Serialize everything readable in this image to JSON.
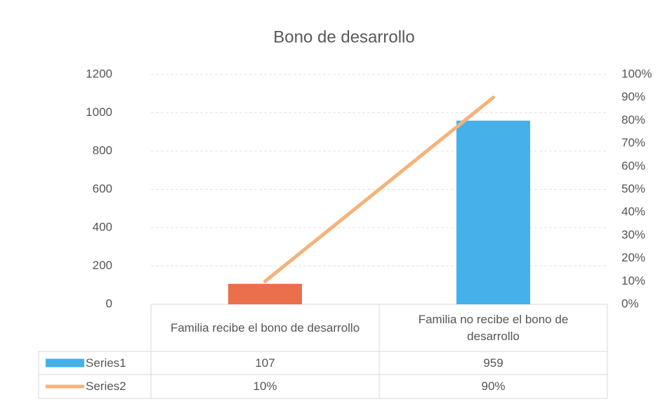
{
  "chart_data": {
    "type": "bar_line",
    "title": "Bono de desarrollo",
    "categories": [
      "Familia recibe el bono de desarrollo",
      "Familia no recibe el bono de desarrollo"
    ],
    "series": [
      {
        "name": "Series1",
        "color": "#45b1ea",
        "colors": [
          "#ec6f4b",
          "#45b1ea"
        ],
        "values": [
          107,
          959
        ]
      },
      {
        "name": "Series2",
        "color": "#f5b27a",
        "axis": "y2",
        "values": [
          10,
          90
        ],
        "value_labels": [
          "10%",
          "90%"
        ]
      }
    ],
    "ylim": [
      0,
      1200
    ],
    "yticks": [
      0,
      200,
      400,
      600,
      800,
      1000,
      1200
    ],
    "y2lim": [
      0,
      100
    ],
    "y2ticks": [
      {
        "value": 0,
        "label": "0%"
      },
      {
        "value": 10,
        "label": "10%"
      },
      {
        "value": 20,
        "label": "20%"
      },
      {
        "value": 30,
        "label": "30%"
      },
      {
        "value": 40,
        "label": "40%"
      },
      {
        "value": 50,
        "label": "50%"
      },
      {
        "value": 60,
        "label": "60%"
      },
      {
        "value": 70,
        "label": "70%"
      },
      {
        "value": 80,
        "label": "80%"
      },
      {
        "value": 90,
        "label": "90%"
      },
      {
        "value": 100,
        "label": "100%"
      }
    ],
    "grid": true,
    "data_table": true
  }
}
